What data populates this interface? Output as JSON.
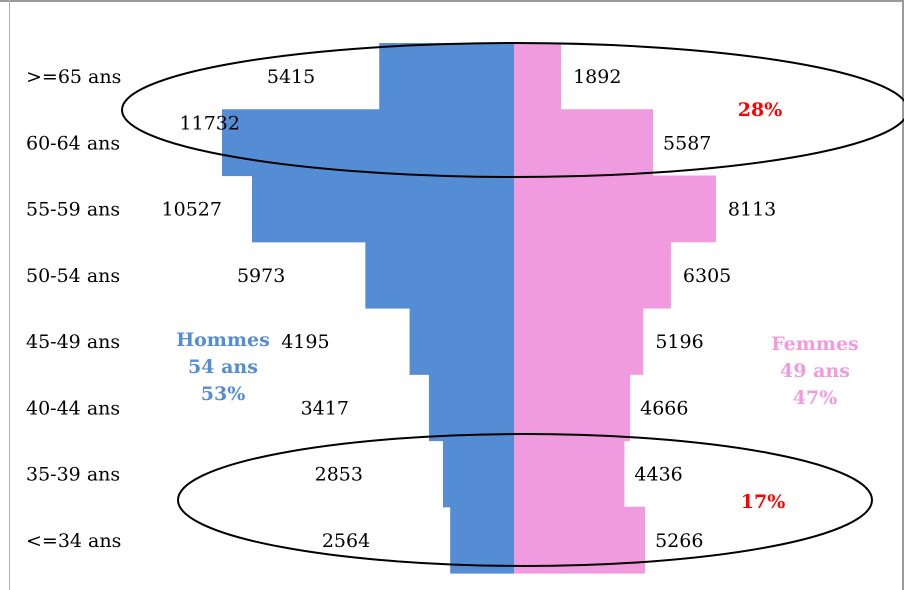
{
  "chart_data": {
    "type": "bar",
    "subtype": "population-pyramid",
    "categories": [
      ">=65 ans",
      "60-64 ans",
      "55-59 ans",
      "50-54 ans",
      "45-49 ans",
      "40-44 ans",
      "35-39 ans",
      "<=34 ans"
    ],
    "series": [
      {
        "name": "Hommes",
        "side": "left",
        "values": [
          5415,
          11732,
          10527,
          5973,
          4195,
          3417,
          2853,
          2564
        ],
        "color": "#548dd4"
      },
      {
        "name": "Femmes",
        "side": "right",
        "values": [
          1892,
          5587,
          8113,
          6305,
          5196,
          4666,
          4436,
          5266
        ],
        "color": "#f09be0"
      }
    ],
    "group_labels": {
      "men": [
        "Hommes",
        "54 ans",
        "53%"
      ],
      "women": [
        "Femmes",
        "49 ans",
        "47%"
      ]
    },
    "annotations": [
      {
        "text": "28%",
        "groups": [
          ">=65 ans",
          "60-64 ans"
        ],
        "color": "#ff0000"
      },
      {
        "text": "17%",
        "groups": [
          "35-39 ans",
          "<=34 ans"
        ],
        "color": "#ff0000"
      }
    ],
    "grid": false,
    "legend": "none"
  }
}
